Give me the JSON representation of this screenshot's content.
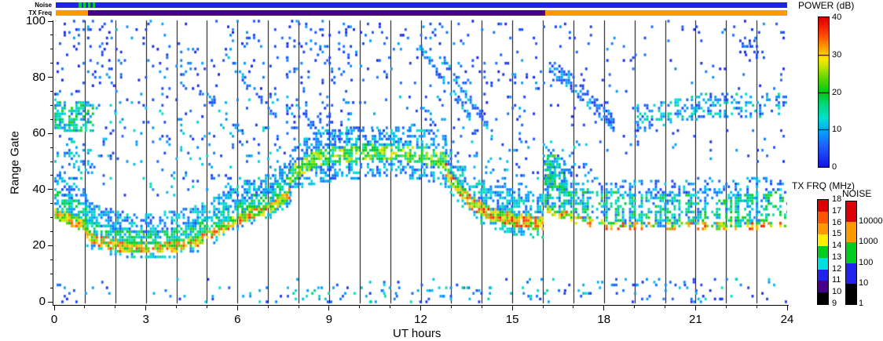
{
  "chart_data": {
    "type": "heatmap",
    "xlabel": "UT hours",
    "ylabel": "Range Gate",
    "x_range": [
      0,
      24
    ],
    "y_range": [
      0,
      100
    ],
    "x_major_ticks": [
      0,
      3,
      6,
      9,
      12,
      15,
      18,
      21,
      24
    ],
    "x_minor_step": 1,
    "y_major_ticks": [
      0,
      20,
      40,
      60,
      80,
      100
    ],
    "y_minor_step": 5,
    "grid": "vertical black line at every UT hour",
    "background": "#ffffff",
    "axis_color": "#000000",
    "power_scale": {
      "title": "POWER (dB)",
      "range": [
        0,
        40
      ],
      "ticks": [
        40,
        30,
        20,
        10,
        0
      ],
      "stops": [
        [
          0,
          "#1414e6"
        ],
        [
          6,
          "#1f62ff"
        ],
        [
          10,
          "#00aaff"
        ],
        [
          13,
          "#00e0d2"
        ],
        [
          17,
          "#00d878"
        ],
        [
          20,
          "#00c814"
        ],
        [
          24,
          "#66d800"
        ],
        [
          27,
          "#c8e400"
        ],
        [
          29,
          "#ffe800"
        ],
        [
          32,
          "#ffa000"
        ],
        [
          35,
          "#ff5000"
        ],
        [
          38,
          "#f01800"
        ],
        [
          40,
          "#dc0000"
        ]
      ]
    },
    "tx_frq_scale": {
      "title": "TX FRQ (MHz)",
      "labels": [
        "18",
        "17",
        "16",
        "15",
        "14",
        "13",
        "12",
        "11",
        "10",
        "9"
      ],
      "colors": [
        "#dc0000",
        "#ff5500",
        "#ff9900",
        "#ffee00",
        "#00cc22",
        "#00e0e0",
        "#2222ee",
        "#470087",
        "#000000"
      ]
    },
    "noise_scale": {
      "title": "NOISE",
      "labels": [
        "10000",
        "1000",
        "100",
        "10",
        "1"
      ],
      "colors": [
        "#dc0000",
        "#ff9900",
        "#00cc22",
        "#2222ee",
        "#000000"
      ]
    },
    "noise_bar": {
      "label": "Noise",
      "segments": [
        [
          0,
          0.76,
          "#2222ee"
        ],
        [
          0.76,
          0.84,
          "#00cc33"
        ],
        [
          0.84,
          0.9,
          "#2222ee"
        ],
        [
          0.9,
          0.98,
          "#00cc33"
        ],
        [
          0.98,
          1.06,
          "#2222ee"
        ],
        [
          1.06,
          1.14,
          "#00cc33"
        ],
        [
          1.14,
          1.2,
          "#2222ee"
        ],
        [
          1.2,
          1.28,
          "#00cc33"
        ],
        [
          1.28,
          24,
          "#2222ee"
        ]
      ]
    },
    "tx_freq_bar": {
      "label": "TX Freq",
      "segments": [
        [
          0,
          1.05,
          "#ff9900"
        ],
        [
          1.05,
          16.05,
          "#470087"
        ],
        [
          16.05,
          24,
          "#ff9900"
        ]
      ]
    },
    "seed": 7,
    "cols_per_hour": 13,
    "regions": [
      {
        "k": "s",
        "t": [
          0,
          2.2
        ],
        "g": [
          74,
          101
        ],
        "d": 0.1,
        "p": [
          1,
          10
        ]
      },
      {
        "k": "s",
        "t": [
          2.2,
          7.6
        ],
        "g": [
          74,
          101
        ],
        "d": 0.05,
        "p": [
          1,
          10
        ]
      },
      {
        "k": "s",
        "t": [
          7.6,
          9.7
        ],
        "g": [
          58,
          101
        ],
        "d": 0.1,
        "p": [
          1,
          10
        ]
      },
      {
        "k": "s",
        "t": [
          9.7,
          11.9
        ],
        "g": [
          78,
          101
        ],
        "d": 0.05,
        "p": [
          1,
          10
        ]
      },
      {
        "k": "s",
        "t": [
          11.9,
          16
        ],
        "g": [
          72,
          101
        ],
        "d": 0.05,
        "p": [
          1,
          10
        ]
      },
      {
        "k": "s",
        "t": [
          1.2,
          7.6
        ],
        "g": [
          38,
          74
        ],
        "d": 0.07,
        "p": [
          2,
          14
        ]
      },
      {
        "k": "s",
        "t": [
          0,
          1.2
        ],
        "g": [
          44,
          60
        ],
        "d": 0.22,
        "p": [
          4,
          16
        ]
      },
      {
        "k": "s",
        "t": [
          7.6,
          12.8
        ],
        "g": [
          60,
          74
        ],
        "d": 0.06,
        "p": [
          2,
          12
        ]
      },
      {
        "k": "s",
        "t": [
          11.9,
          16
        ],
        "g": [
          58,
          72
        ],
        "d": 0.04,
        "p": [
          1,
          10
        ]
      },
      {
        "k": "s",
        "t": [
          12.8,
          16
        ],
        "g": [
          40,
          58
        ],
        "d": 0.07,
        "p": [
          2,
          13
        ]
      },
      {
        "k": "s",
        "t": [
          16,
          24
        ],
        "g": [
          76,
          101
        ],
        "d": 0.025,
        "p": [
          1,
          9
        ]
      },
      {
        "k": "s",
        "t": [
          22.2,
          23.2
        ],
        "g": [
          86,
          101
        ],
        "d": 0.1,
        "p": [
          1,
          9
        ]
      },
      {
        "k": "s",
        "t": [
          16,
          19
        ],
        "g": [
          52,
          76
        ],
        "d": 0.03,
        "p": [
          1,
          10
        ]
      },
      {
        "k": "s",
        "t": [
          19,
          24
        ],
        "g": [
          50,
          62
        ],
        "d": 0.03,
        "p": [
          1,
          10
        ]
      },
      {
        "k": "s",
        "t": [
          0,
          24
        ],
        "g": [
          0,
          9
        ],
        "d": 0.035,
        "p": [
          2,
          14
        ]
      },
      {
        "k": "s",
        "t": [
          7.8,
          16.6
        ],
        "g": [
          0,
          6
        ],
        "d": 0.09,
        "p": [
          2,
          18
        ]
      },
      {
        "k": "s",
        "t": [
          16.6,
          24
        ],
        "g": [
          0,
          9
        ],
        "d": 0.05,
        "p": [
          2,
          15
        ]
      },
      {
        "k": "s",
        "t": [
          16,
          17.6
        ],
        "g": [
          44,
          58
        ],
        "d": 0.1,
        "p": [
          2,
          14
        ]
      },
      {
        "k": "b",
        "pts": [
          [
            0,
            32
          ],
          [
            1.05,
            27
          ]
        ],
        "jit": 0.2,
        "layers": [
          {
            "o": 0,
            "w": 4,
            "d": 0.85,
            "p": [
              18,
              36
            ]
          },
          {
            "o": 5,
            "w": 7,
            "d": 0.6,
            "p": [
              8,
              20
            ]
          },
          {
            "o": 11,
            "w": 7,
            "d": 0.45,
            "p": [
              4,
              14
            ]
          }
        ]
      },
      {
        "k": "b",
        "pts": [
          [
            0,
            67
          ],
          [
            1.3,
            66
          ]
        ],
        "jit": 0.3,
        "layers": [
          {
            "o": 0,
            "w": 11,
            "d": 0.55,
            "p": [
              6,
              22
            ]
          }
        ]
      },
      {
        "k": "b",
        "pts": [
          [
            1.05,
            24
          ],
          [
            1.5,
            22
          ],
          [
            2,
            20.5
          ],
          [
            3,
            19.5
          ],
          [
            4,
            20.5
          ],
          [
            4.7,
            22.5
          ],
          [
            5.5,
            27
          ],
          [
            6.2,
            31
          ],
          [
            7,
            34
          ],
          [
            7.7,
            39
          ]
        ],
        "jit": 0.25,
        "layers": [
          {
            "o": 0,
            "w": 4,
            "d": 0.8,
            "p": [
              18,
              37
            ]
          },
          {
            "o": 4,
            "w": 5,
            "d": 0.65,
            "p": [
              8,
              22
            ]
          },
          {
            "o": 9,
            "w": 7,
            "d": 0.5,
            "p": [
              4,
              15
            ]
          },
          {
            "o": -3,
            "w": 2,
            "d": 0.4,
            "p": [
              6,
              16
            ]
          }
        ]
      },
      {
        "k": "b",
        "pts": [
          [
            7.7,
            45
          ],
          [
            8.1,
            49
          ],
          [
            8.6,
            52
          ],
          [
            9.5,
            53
          ],
          [
            10.5,
            54
          ],
          [
            11.5,
            53.5
          ],
          [
            12.4,
            52
          ],
          [
            12.8,
            50
          ]
        ],
        "jit": 0.3,
        "layers": [
          {
            "o": 0,
            "w": 6,
            "d": 0.7,
            "p": [
              12,
              29
            ]
          },
          {
            "o": 6,
            "w": 7,
            "d": 0.5,
            "p": [
              4,
              14
            ]
          },
          {
            "o": -6,
            "w": 6,
            "d": 0.45,
            "p": [
              4,
              14
            ]
          }
        ]
      },
      {
        "k": "b",
        "pts": [
          [
            12.8,
            47
          ],
          [
            13.2,
            41
          ],
          [
            13.6,
            36
          ],
          [
            14.2,
            32
          ],
          [
            15,
            30
          ],
          [
            15.6,
            29
          ],
          [
            16,
            28
          ]
        ],
        "jit": 0.25,
        "layers": [
          {
            "o": 0,
            "w": 5,
            "d": 0.85,
            "p": [
              20,
              38
            ]
          },
          {
            "o": 6,
            "w": 9,
            "d": 0.5,
            "p": [
              5,
              16
            ]
          },
          {
            "o": -4,
            "w": 3,
            "d": 0.4,
            "p": [
              8,
              18
            ]
          }
        ]
      },
      {
        "k": "b",
        "pts": [
          [
            16.05,
            40
          ],
          [
            16.5,
            38
          ],
          [
            17,
            36
          ],
          [
            18,
            34
          ],
          [
            19,
            33
          ],
          [
            20,
            33
          ],
          [
            21,
            34
          ],
          [
            22,
            33
          ],
          [
            23,
            34
          ],
          [
            24,
            34
          ]
        ],
        "jit": 0.75,
        "layers": [
          {
            "o": 0,
            "w": 12,
            "d": 0.5,
            "p": [
              5,
              22
            ]
          },
          {
            "o": -6,
            "w": 3,
            "d": 0.35,
            "p": [
              22,
              38
            ]
          },
          {
            "o": 8,
            "w": 6,
            "d": 0.3,
            "p": [
              3,
              13
            ]
          }
        ]
      },
      {
        "k": "b",
        "pts": [
          [
            16.05,
            48
          ],
          [
            16.7,
            45
          ]
        ],
        "jit": 0.3,
        "layers": [
          {
            "o": 0,
            "w": 12,
            "d": 0.55,
            "p": [
              6,
              24
            ]
          }
        ]
      },
      {
        "k": "b",
        "pts": [
          [
            19,
            66
          ],
          [
            20,
            68
          ],
          [
            21,
            70
          ],
          [
            22,
            70
          ],
          [
            23,
            70
          ],
          [
            24,
            70
          ]
        ],
        "jit": 0.5,
        "layers": [
          {
            "o": 0,
            "w": 9,
            "d": 0.35,
            "p": [
              3,
              17
            ]
          }
        ]
      },
      {
        "k": "b",
        "pts": [
          [
            16.2,
            84
          ],
          [
            16.8,
            80
          ],
          [
            17.5,
            72
          ],
          [
            18.3,
            64
          ]
        ],
        "jit": 0.3,
        "layers": [
          {
            "o": 0,
            "w": 6,
            "d": 0.5,
            "p": [
              2,
              12
            ]
          }
        ]
      },
      {
        "k": "b",
        "pts": [
          [
            11.95,
            91
          ],
          [
            13.6,
            66
          ]
        ],
        "jit": 0.2,
        "layers": [
          {
            "o": 0,
            "w": 3,
            "d": 0.6,
            "p": [
              3,
              14
            ]
          }
        ]
      },
      {
        "k": "b",
        "pts": [
          [
            12.6,
            88
          ],
          [
            14.35,
            60
          ]
        ],
        "jit": 0.2,
        "layers": [
          {
            "o": 0,
            "w": 3,
            "d": 0.5,
            "p": [
              3,
              14
            ]
          }
        ]
      },
      {
        "k": "b",
        "pts": [
          [
            4.6,
            78
          ],
          [
            6.2,
            60
          ]
        ],
        "jit": 0.2,
        "layers": [
          {
            "o": 0,
            "w": 3,
            "d": 0.35,
            "p": [
              2,
              12
            ]
          }
        ]
      },
      {
        "k": "b",
        "pts": [
          [
            5.6,
            87
          ],
          [
            7.3,
            66
          ]
        ],
        "jit": 0.2,
        "layers": [
          {
            "o": 0,
            "w": 3,
            "d": 0.3,
            "p": [
              2,
              12
            ]
          }
        ]
      }
    ]
  }
}
